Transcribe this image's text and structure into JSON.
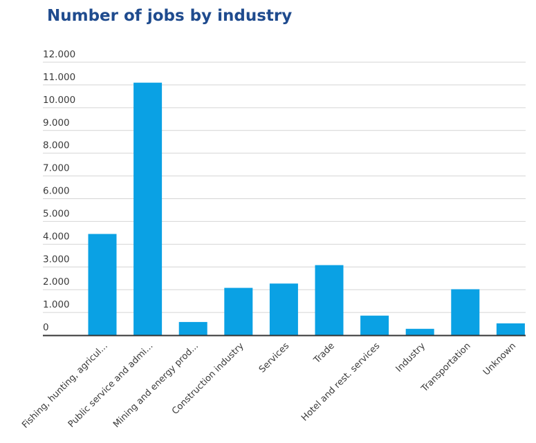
{
  "chart_data": {
    "type": "bar",
    "title": "Number of jobs by industry",
    "xlabel": "",
    "ylabel": "",
    "categories": [
      "Fishing, hunting, agricul...",
      "Public service and admi...",
      "Mining and energy prod...",
      "Construction industry",
      "Services",
      "Trade",
      "Hotel and rest. services",
      "Industry",
      "Transportation",
      "Unknown"
    ],
    "values": [
      4450,
      11100,
      580,
      2080,
      2270,
      3080,
      860,
      280,
      2020,
      520
    ],
    "ylim": [
      0,
      12000
    ],
    "yticks": [
      0,
      1000,
      2000,
      3000,
      4000,
      5000,
      6000,
      7000,
      8000,
      9000,
      10000,
      11000,
      12000
    ],
    "ytick_labels": [
      "0",
      "1.000",
      "2.000",
      "3.000",
      "4.000",
      "5.000",
      "6.000",
      "7.000",
      "8.000",
      "9.000",
      "10.000",
      "11.000",
      "12.000"
    ],
    "grid": true,
    "bar_color": "#0aa1e4",
    "grid_color": "#d4d4d4",
    "axis_color": "#333333",
    "title_color": "#1f4b8e"
  }
}
